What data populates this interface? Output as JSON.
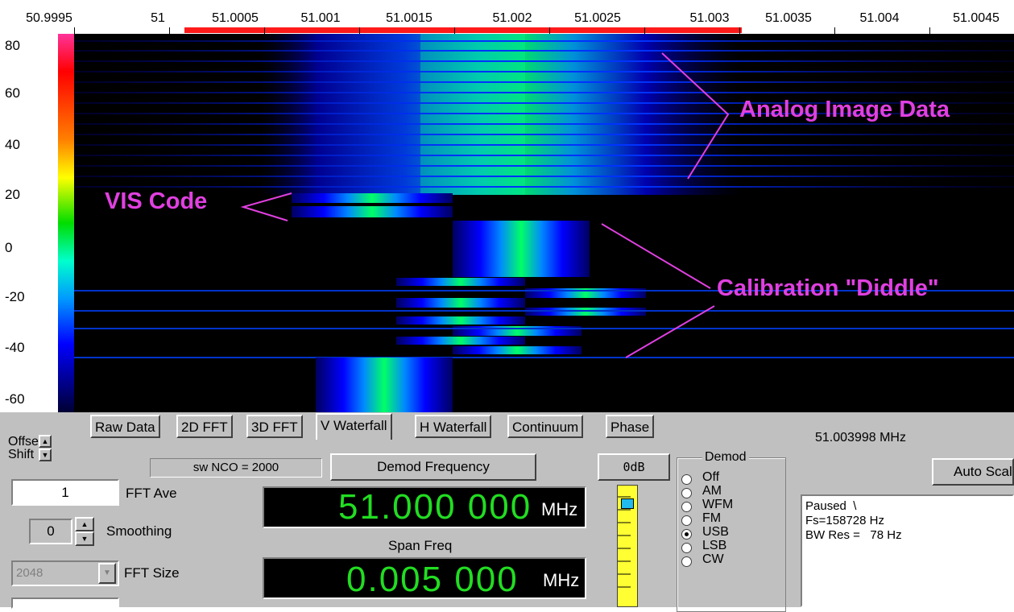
{
  "x_axis": {
    "ticks": [
      "50.9995",
      "51",
      "51.0005",
      "51.001",
      "51.0015",
      "51.002",
      "51.0025",
      "51.003",
      "51.0035",
      "51.004",
      "51.0045"
    ]
  },
  "y_axis": {
    "ticks": [
      "80",
      "60",
      "40",
      "20",
      "0",
      "-20",
      "-40",
      "-60"
    ]
  },
  "annotations": {
    "analog": "Analog Image Data",
    "vis": "VIS Code",
    "calibration": "Calibration \"Diddle\""
  },
  "tabs": [
    "Raw Data",
    "2D FFT",
    "3D FFT",
    "V Waterfall",
    "H Waterfall",
    "Continuum",
    "Phase"
  ],
  "active_tab": "V Waterfall",
  "offset_shift": {
    "label1": "Offset",
    "label2": "Shift"
  },
  "sw_nco": "sw NCO = 2000",
  "demod_frequency_button": "Demod Frequency",
  "db_button": "0dB",
  "freq_readout": "51.003998 MHz",
  "auto_scale_button": "Auto Scal",
  "fft_ave": {
    "value": "1",
    "label": "FFT Ave"
  },
  "smoothing": {
    "value": "0",
    "label": "Smoothing"
  },
  "fft_size": {
    "value": "2048",
    "label": "FFT Size"
  },
  "demod_display": {
    "value": "51.000 000",
    "unit": "MHz"
  },
  "span": {
    "label": "Span Freq",
    "value": "0.005 000",
    "unit": "MHz"
  },
  "demod_group": {
    "title": "Demod",
    "options": [
      "Off",
      "AM",
      "WFM",
      "FM",
      "USB",
      "LSB",
      "CW"
    ],
    "selected": "USB"
  },
  "status": {
    "line1": "Paused  \\",
    "line2": "Fs=158728 Hz",
    "line3": "BW Res =   78 Hz"
  },
  "colors": {
    "annotation": "#e040e0",
    "lcd_digits": "#22dd22",
    "panel": "#c0c0c0",
    "red_span": "#ff1a1a"
  }
}
